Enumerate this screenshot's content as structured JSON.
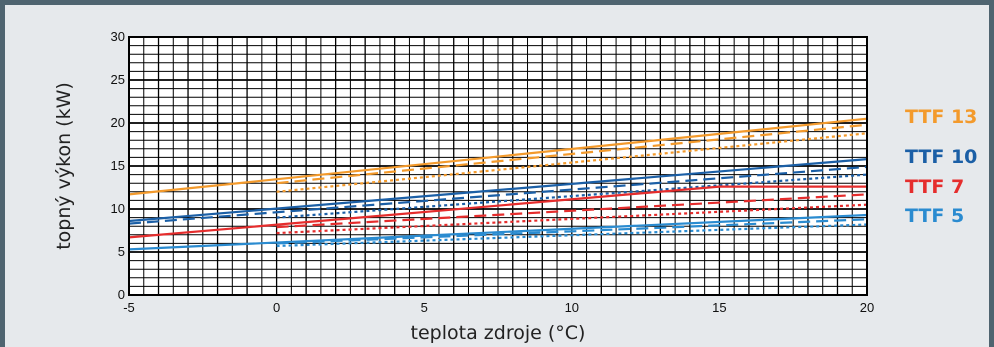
{
  "chart_data": {
    "type": "line",
    "title": "",
    "xlabel": "teplota zdroje (°C)",
    "ylabel": "topný výkon (kW)",
    "xlim": [
      -5,
      20
    ],
    "ylim": [
      0,
      30
    ],
    "x_ticks": [
      -5,
      0,
      5,
      10,
      15,
      20
    ],
    "y_ticks": [
      0,
      5,
      10,
      15,
      20,
      25,
      30
    ],
    "grid": true,
    "legend_position": "right",
    "series": [
      {
        "name": "TTF 13",
        "color": "#f39a2c",
        "lines": [
          {
            "style": "solid",
            "x": [
              -5,
              20
            ],
            "y": [
              11.7,
              20.5
            ]
          },
          {
            "style": "dashed",
            "x": [
              0,
              20
            ],
            "y": [
              13.0,
              19.8
            ]
          },
          {
            "style": "dotted",
            "x": [
              0,
              20
            ],
            "y": [
              12.0,
              18.8
            ]
          }
        ]
      },
      {
        "name": "TTF 10",
        "color": "#1b5fa6",
        "lines": [
          {
            "style": "solid",
            "x": [
              -5,
              20
            ],
            "y": [
              8.6,
              15.8
            ]
          },
          {
            "style": "dashed",
            "x": [
              -5,
              20
            ],
            "y": [
              8.3,
              14.9
            ]
          },
          {
            "style": "dotted",
            "x": [
              0,
              20
            ],
            "y": [
              9.0,
              14.0
            ]
          }
        ]
      },
      {
        "name": "TTF 7",
        "color": "#e52d2d",
        "lines": [
          {
            "style": "solid",
            "x": [
              -5,
              15,
              20
            ],
            "y": [
              6.7,
              12.6,
              12.6
            ]
          },
          {
            "style": "dashed",
            "x": [
              0,
              20
            ],
            "y": [
              7.9,
              11.7
            ]
          },
          {
            "style": "dotted",
            "x": [
              0,
              20
            ],
            "y": [
              7.2,
              10.5
            ]
          }
        ]
      },
      {
        "name": "TTF 5",
        "color": "#2a8bd0",
        "lines": [
          {
            "style": "solid",
            "x": [
              -5,
              20
            ],
            "y": [
              5.3,
              9.3
            ]
          },
          {
            "style": "dashed",
            "x": [
              0,
              20
            ],
            "y": [
              6.0,
              8.8
            ]
          },
          {
            "style": "dotted",
            "x": [
              0,
              20
            ],
            "y": [
              5.7,
              8.2
            ]
          }
        ]
      }
    ]
  }
}
